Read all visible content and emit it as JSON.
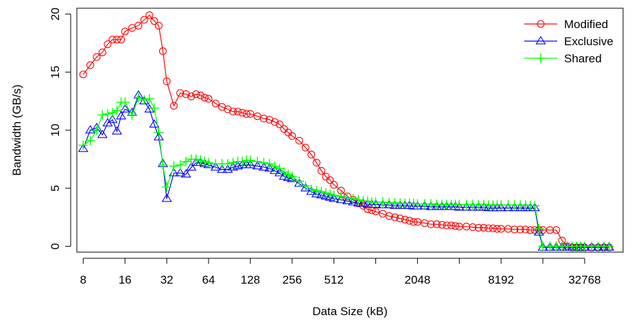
{
  "chart_data": {
    "type": "line",
    "title": "",
    "xlabel": "Data Size (kB)",
    "ylabel": "Bandwidth (GB/s)",
    "x_scale": "log2",
    "xlim": [
      7.2,
      62000
    ],
    "ylim": [
      -0.5,
      20.5
    ],
    "x_ticks": [
      8,
      16,
      32,
      64,
      128,
      256,
      512,
      2048,
      8192,
      32768
    ],
    "x_minor_ticks": [
      1024,
      4096,
      16384
    ],
    "y_ticks": [
      0,
      5,
      10,
      15,
      20
    ],
    "grid": false,
    "legend_position": "top-right",
    "series": [
      {
        "name": "Modified",
        "color": "#ff0000",
        "marker": "circle",
        "x": [
          8,
          9,
          10,
          11,
          12,
          13,
          14,
          15,
          16,
          18,
          20,
          22,
          24,
          26,
          28,
          30,
          32,
          36,
          40,
          44,
          48,
          52,
          56,
          60,
          64,
          72,
          80,
          88,
          96,
          104,
          112,
          120,
          128,
          144,
          160,
          176,
          192,
          208,
          224,
          240,
          256,
          288,
          320,
          352,
          384,
          416,
          448,
          480,
          512,
          576,
          640,
          704,
          768,
          832,
          896,
          960,
          1024,
          1152,
          1280,
          1408,
          1536,
          1664,
          1792,
          1920,
          2048,
          2304,
          2560,
          2816,
          3072,
          3328,
          3584,
          3840,
          4096,
          4608,
          5120,
          5632,
          6144,
          6656,
          7168,
          7680,
          8192,
          9216,
          10240,
          11264,
          12288,
          13312,
          14336,
          15360,
          16384,
          18432,
          20480,
          22528,
          24576,
          26624,
          28672,
          30720,
          32768,
          36864,
          40960,
          45056,
          49152
        ],
        "y": [
          14.8,
          15.6,
          16.3,
          16.7,
          17.4,
          17.8,
          17.8,
          17.8,
          18.5,
          18.8,
          19.0,
          19.5,
          19.9,
          19.4,
          19.0,
          16.8,
          14.2,
          12.1,
          13.2,
          13.1,
          12.9,
          13.1,
          13.0,
          12.8,
          12.7,
          12.3,
          12.0,
          11.8,
          11.6,
          11.6,
          11.5,
          11.4,
          11.4,
          11.2,
          11.0,
          10.9,
          10.7,
          10.5,
          10.1,
          9.8,
          9.5,
          9.1,
          8.5,
          7.9,
          7.2,
          6.5,
          6.0,
          5.7,
          5.3,
          4.8,
          4.3,
          4.0,
          3.7,
          3.5,
          3.2,
          3.1,
          3.0,
          2.8,
          2.6,
          2.5,
          2.4,
          2.3,
          2.2,
          2.1,
          2.1,
          2.0,
          1.9,
          1.9,
          1.85,
          1.8,
          1.8,
          1.75,
          1.7,
          1.7,
          1.65,
          1.6,
          1.6,
          1.55,
          1.55,
          1.5,
          1.5,
          1.5,
          1.45,
          1.45,
          1.45,
          1.4,
          1.4,
          1.4,
          1.4,
          1.4,
          1.4,
          0.5,
          0.0,
          -0.1,
          -0.1,
          -0.1,
          -0.1,
          -0.1,
          -0.1,
          -0.1,
          -0.1
        ]
      },
      {
        "name": "Exclusive",
        "color": "#0000ff",
        "marker": "triangle",
        "x": [
          8,
          9,
          10,
          11,
          12,
          13,
          14,
          15,
          16,
          18,
          20,
          22,
          24,
          26,
          28,
          30,
          32,
          36,
          40,
          44,
          48,
          52,
          56,
          60,
          64,
          72,
          80,
          88,
          96,
          104,
          112,
          120,
          128,
          144,
          160,
          176,
          192,
          208,
          224,
          240,
          256,
          288,
          320,
          352,
          384,
          416,
          448,
          480,
          512,
          576,
          640,
          704,
          768,
          832,
          896,
          960,
          1024,
          1152,
          1280,
          1408,
          1536,
          1664,
          1792,
          1920,
          2048,
          2304,
          2560,
          2816,
          3072,
          3328,
          3584,
          3840,
          4096,
          4608,
          5120,
          5632,
          6144,
          6656,
          7168,
          7680,
          8192,
          9216,
          10240,
          11264,
          12288,
          13312,
          14336,
          15360,
          16384,
          18432,
          20480,
          22528,
          24576,
          26624,
          28672,
          30720,
          32768,
          36864,
          40960,
          45056,
          49152
        ],
        "y": [
          8.4,
          10.0,
          10.2,
          9.6,
          10.6,
          10.9,
          9.9,
          11.2,
          11.8,
          11.5,
          13.0,
          12.5,
          11.8,
          10.5,
          9.4,
          7.1,
          4.1,
          6.3,
          6.3,
          6.2,
          6.8,
          7.2,
          7.2,
          7.1,
          7.0,
          6.8,
          6.6,
          6.6,
          6.8,
          6.9,
          7.0,
          7.0,
          7.0,
          6.9,
          6.8,
          6.7,
          6.5,
          6.3,
          6.0,
          5.9,
          5.8,
          5.4,
          5.0,
          4.7,
          4.5,
          4.4,
          4.3,
          4.2,
          4.1,
          4.0,
          3.9,
          3.8,
          3.7,
          3.7,
          3.6,
          3.6,
          3.6,
          3.55,
          3.55,
          3.5,
          3.5,
          3.5,
          3.5,
          3.45,
          3.45,
          3.45,
          3.4,
          3.4,
          3.4,
          3.4,
          3.4,
          3.4,
          3.35,
          3.35,
          3.35,
          3.35,
          3.35,
          3.3,
          3.3,
          3.3,
          3.3,
          3.3,
          3.3,
          3.3,
          3.3,
          3.3,
          3.3,
          1.2,
          -0.1,
          -0.1,
          -0.1,
          -0.1,
          -0.1,
          -0.1,
          -0.1,
          -0.1,
          -0.1,
          -0.1,
          -0.1,
          -0.1,
          -0.1
        ]
      },
      {
        "name": "Shared",
        "color": "#00ff00",
        "marker": "plus",
        "x": [
          8,
          9,
          10,
          11,
          12,
          13,
          14,
          15,
          16,
          18,
          20,
          22,
          24,
          26,
          28,
          30,
          32,
          36,
          40,
          44,
          48,
          52,
          56,
          60,
          64,
          72,
          80,
          88,
          96,
          104,
          112,
          120,
          128,
          144,
          160,
          176,
          192,
          208,
          224,
          240,
          256,
          288,
          320,
          352,
          384,
          416,
          448,
          480,
          512,
          576,
          640,
          704,
          768,
          832,
          896,
          960,
          1024,
          1152,
          1280,
          1408,
          1536,
          1664,
          1792,
          1920,
          2048,
          2304,
          2560,
          2816,
          3072,
          3328,
          3584,
          3840,
          4096,
          4608,
          5120,
          5632,
          6144,
          6656,
          7168,
          7680,
          8192,
          9216,
          10240,
          11264,
          12288,
          13312,
          14336,
          15360,
          16384,
          18432,
          20480,
          22528,
          24576,
          26624,
          28672,
          30720,
          32768,
          36864,
          40960,
          45056,
          49152
        ],
        "y": [
          8.7,
          9.1,
          10.0,
          11.3,
          11.4,
          11.5,
          11.7,
          12.4,
          12.4,
          11.3,
          12.8,
          12.6,
          12.7,
          11.9,
          9.8,
          7.0,
          5.1,
          6.9,
          7.0,
          7.3,
          7.5,
          7.5,
          7.4,
          7.3,
          7.2,
          7.1,
          7.1,
          7.1,
          7.2,
          7.3,
          7.3,
          7.4,
          7.4,
          7.3,
          7.2,
          7.1,
          6.9,
          6.7,
          6.4,
          6.2,
          6.0,
          5.6,
          5.2,
          4.9,
          4.8,
          4.7,
          4.6,
          4.5,
          4.4,
          4.3,
          4.2,
          4.1,
          4.0,
          3.9,
          3.9,
          3.8,
          3.8,
          3.8,
          3.75,
          3.75,
          3.7,
          3.7,
          3.7,
          3.7,
          3.65,
          3.65,
          3.65,
          3.6,
          3.6,
          3.6,
          3.6,
          3.6,
          3.6,
          3.6,
          3.6,
          3.6,
          3.6,
          3.55,
          3.55,
          3.55,
          3.55,
          3.55,
          3.55,
          3.55,
          3.55,
          3.5,
          3.5,
          1.5,
          0.0,
          0.0,
          0.0,
          0.0,
          0.0,
          0.0,
          0.0,
          0.0,
          0.0,
          0.0,
          0.0,
          0.0,
          0.0
        ]
      }
    ]
  }
}
